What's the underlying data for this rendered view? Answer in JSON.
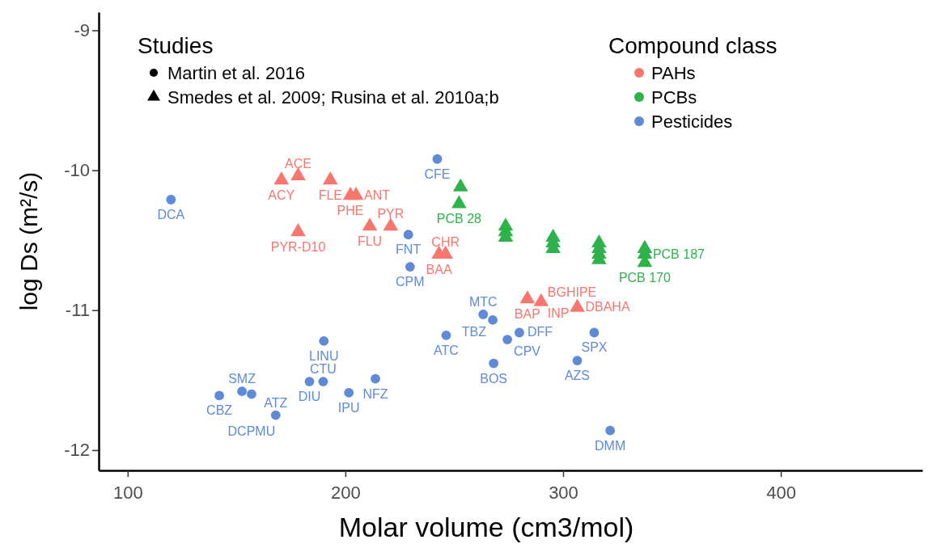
{
  "chart_data": {
    "type": "scatter",
    "xlabel": "Molar volume (cm3/mol)",
    "ylabel": "log Ds (m²/s)",
    "legend_title": "Compound class",
    "legend": "top right",
    "grid": false,
    "xlim": [
      86.7,
      465
    ],
    "xticks": [
      100,
      200,
      300,
      400
    ],
    "ylim": [
      -12.145,
      -8.87
    ],
    "yticks": [
      -9,
      -10,
      -11,
      -12
    ],
    "series": [
      {
        "name": "PAHs",
        "color": "#f8766d",
        "marker": "triangle",
        "x": [
          170.6,
          178.3,
          178.3,
          193.1,
          202.3,
          204.9,
          211.2,
          220.8,
          243,
          246,
          283.6,
          289.9,
          306.5
        ],
        "values": [
          -10.07,
          -10.04,
          -10.44,
          -10.07,
          -10.18,
          -10.18,
          -10.4,
          -10.4,
          -10.6,
          -10.6,
          -10.92,
          -10.94,
          -10.98
        ]
      },
      {
        "name": "PCBs",
        "color": "#2db34a",
        "marker": "triangle",
        "x": [
          252.9,
          252.2,
          273.6,
          273.6,
          273.6,
          295.4,
          295.4,
          295.4,
          316.5,
          316.5,
          316.5,
          316.5,
          337.5,
          337.5,
          337.5
        ],
        "values": [
          -10.12,
          -10.24,
          -10.4,
          -10.44,
          -10.48,
          -10.48,
          -10.52,
          -10.56,
          -10.52,
          -10.56,
          -10.6,
          -10.64,
          -10.56,
          -10.6,
          -10.66
        ]
      },
      {
        "name": "Pesticides",
        "color": "#5f8ad6",
        "marker": "circle",
        "x": [
          119.9,
          242.2,
          228.9,
          229.7,
          190.1,
          183.5,
          189.8,
          201.6,
          213.8,
          142.1,
          152.5,
          156.9,
          168,
          263.3,
          267.7,
          246.3,
          274.4,
          279.9,
          268.1,
          306.5,
          314.3,
          321.6
        ],
        "values": [
          -10.21,
          -9.92,
          -10.46,
          -10.69,
          -11.22,
          -11.51,
          -11.51,
          -11.59,
          -11.49,
          -11.61,
          -11.58,
          -11.6,
          -11.75,
          -11.03,
          -11.07,
          -11.18,
          -11.21,
          -11.16,
          -11.38,
          -11.36,
          -11.16,
          -11.86
        ]
      }
    ],
    "annotations": [
      "Studies",
      "Martin et al. 2016",
      "Smedes et al. 2009; Rusina et al. 2010a;b",
      {
        "text": "ACY",
        "x": 170.6,
        "y": -10.07
      },
      {
        "text": "ACE",
        "x": 178.3,
        "y": -10.04
      },
      {
        "text": "PYR-D10",
        "x": 178.3,
        "y": -10.44
      },
      {
        "text": "FLE",
        "x": 193.1,
        "y": -10.07
      },
      {
        "text": "PHE",
        "x": 202.3,
        "y": -10.18
      },
      {
        "text": "ANT",
        "x": 204.9,
        "y": -10.18
      },
      {
        "text": "FLU",
        "x": 211.2,
        "y": -10.4
      },
      {
        "text": "PYR",
        "x": 220.8,
        "y": -10.4
      },
      {
        "text": "BAA",
        "x": 243,
        "y": -10.6
      },
      {
        "text": "CHR",
        "x": 246,
        "y": -10.6
      },
      {
        "text": "BAP",
        "x": 283.6,
        "y": -10.92
      },
      {
        "text": "BGHIPE",
        "x": 289.9,
        "y": -10.94
      },
      {
        "text": "INP",
        "x": 289.9,
        "y": -10.94
      },
      {
        "text": "DBAHA",
        "x": 306.5,
        "y": -10.98
      },
      {
        "text": "PCB 28",
        "x": 252.2,
        "y": -10.24
      },
      {
        "text": "PCB 187",
        "x": 337.5,
        "y": -10.6
      },
      {
        "text": "PCB 170",
        "x": 337.5,
        "y": -10.66
      },
      {
        "text": "DCA",
        "x": 119.9,
        "y": -10.21
      },
      {
        "text": "CFE",
        "x": 242.2,
        "y": -9.92
      },
      {
        "text": "FNT",
        "x": 228.9,
        "y": -10.46
      },
      {
        "text": "CPM",
        "x": 229.7,
        "y": -10.69
      },
      {
        "text": "LINU",
        "x": 190.1,
        "y": -11.22
      },
      {
        "text": "DIU",
        "x": 183.5,
        "y": -11.51
      },
      {
        "text": "CTU",
        "x": 189.8,
        "y": -11.51
      },
      {
        "text": "IPU",
        "x": 201.6,
        "y": -11.59
      },
      {
        "text": "NFZ",
        "x": 213.8,
        "y": -11.49
      },
      {
        "text": "CBZ",
        "x": 142.1,
        "y": -11.61
      },
      {
        "text": "SMZ",
        "x": 152.5,
        "y": -11.58
      },
      {
        "text": "DCPMU",
        "x": 156.9,
        "y": -11.6
      },
      {
        "text": "ATZ",
        "x": 168,
        "y": -11.75
      },
      {
        "text": "MTC",
        "x": 263.3,
        "y": -11.03
      },
      {
        "text": "TBZ",
        "x": 267.7,
        "y": -11.07
      },
      {
        "text": "ATC",
        "x": 246.3,
        "y": -11.18
      },
      {
        "text": "CPV",
        "x": 274.4,
        "y": -11.21
      },
      {
        "text": "DFF",
        "x": 279.9,
        "y": -11.16
      },
      {
        "text": "BOS",
        "x": 268.1,
        "y": -11.38
      },
      {
        "text": "AZS",
        "x": 306.5,
        "y": -11.36
      },
      {
        "text": "SPX",
        "x": 314.3,
        "y": -11.16
      },
      {
        "text": "DMM",
        "x": 321.6,
        "y": -11.86
      }
    ]
  }
}
